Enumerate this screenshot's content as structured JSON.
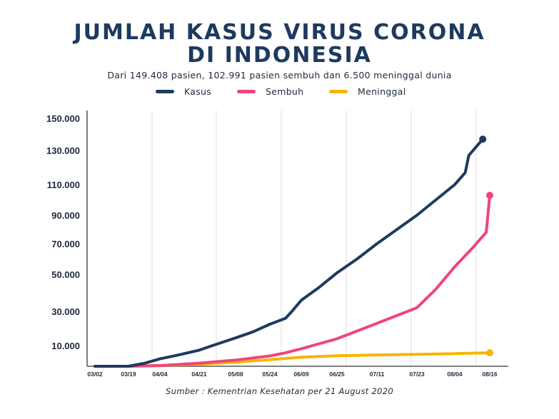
{
  "chart_data": {
    "type": "line",
    "title_line1": "JUMLAH KASUS VIRUS CORONA",
    "title_line2": "DI INDONESIA",
    "subtitle": "Dari 149.408 pasien, 102.991 pasien sembuh dan 6.500 meninggal dunia",
    "source": "Sumber : Kementrian Kesehatan per 21 August 2020",
    "y_ticks": [
      "150.000",
      "130.000",
      "110.000",
      "90.000",
      "70.000",
      "50.000",
      "30.000",
      "10.000"
    ],
    "x_ticks": [
      "03/02",
      "03/19",
      "04/04",
      "04/21",
      "05/08",
      "05/24",
      "06/09",
      "06/25",
      "07/11",
      "07/23",
      "08/04",
      "08/16"
    ],
    "grid": "vertical",
    "legend_position": "top",
    "series": [
      {
        "name": "Kasus",
        "color": "#1e3a5f",
        "points": [
          [
            0,
            2
          ],
          [
            0.5,
            2
          ],
          [
            1,
            20
          ],
          [
            1.5,
            1400
          ],
          [
            2,
            3600
          ],
          [
            2.5,
            5600
          ],
          [
            3,
            7800
          ],
          [
            3.5,
            11000
          ],
          [
            4,
            14500
          ],
          [
            4.5,
            18000
          ],
          [
            5,
            22500
          ],
          [
            5.5,
            26000
          ],
          [
            5.7,
            30000
          ],
          [
            6,
            36000
          ],
          [
            6.5,
            43000
          ],
          [
            7,
            51000
          ],
          [
            7.5,
            60000
          ],
          [
            8,
            70000
          ],
          [
            8.5,
            80000
          ],
          [
            9,
            90000
          ],
          [
            9.5,
            100000
          ],
          [
            10,
            110000
          ],
          [
            10.3,
            117000
          ],
          [
            10.4,
            127000
          ],
          [
            10.8,
            137000
          ]
        ]
      },
      {
        "name": "Sembuh",
        "color": "#f0457a",
        "points": [
          [
            0,
            0
          ],
          [
            1,
            0
          ],
          [
            2,
            300
          ],
          [
            3,
            1500
          ],
          [
            4,
            3000
          ],
          [
            5,
            5000
          ],
          [
            5.5,
            6500
          ],
          [
            6,
            8500
          ],
          [
            7,
            14000
          ],
          [
            8,
            23000
          ],
          [
            9,
            32000
          ],
          [
            9.5,
            42000
          ],
          [
            10,
            55000
          ],
          [
            10.5,
            67000
          ],
          [
            10.9,
            78000
          ],
          [
            11,
            102991
          ]
        ]
      },
      {
        "name": "Meninggal",
        "color": "#f7b500",
        "points": [
          [
            0,
            0
          ],
          [
            1,
            0
          ],
          [
            2,
            400
          ],
          [
            3,
            1000
          ],
          [
            4,
            2000
          ],
          [
            5,
            3200
          ],
          [
            6,
            4400
          ],
          [
            7,
            5100
          ],
          [
            8,
            5500
          ],
          [
            9,
            5800
          ],
          [
            10,
            6100
          ],
          [
            11,
            6500
          ]
        ]
      }
    ]
  }
}
